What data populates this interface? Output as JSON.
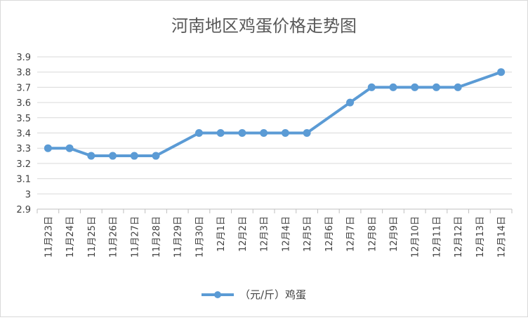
{
  "chart_data": {
    "type": "line",
    "title": "河南地区鸡蛋价格走势图",
    "xlabel": "",
    "ylabel": "",
    "ylim": [
      2.9,
      3.9
    ],
    "y_ticks": [
      "2.9",
      "3",
      "3.1",
      "3.2",
      "3.3",
      "3.4",
      "3.5",
      "3.6",
      "3.7",
      "3.8",
      "3.9"
    ],
    "grid": true,
    "legend_position": "bottom",
    "categories": [
      "11月23日",
      "11月24日",
      "11月25日",
      "11月26日",
      "11月27日",
      "11月28日",
      "11月29日",
      "11月30日",
      "12月1日",
      "12月2日",
      "12月3日",
      "12月4日",
      "12月5日",
      "12月6日",
      "12月7日",
      "12月8日",
      "12月9日",
      "12月10日",
      "12月11日",
      "12月12日",
      "12月13日",
      "12月14日"
    ],
    "series": [
      {
        "name": "（元/斤）鸡蛋",
        "color": "#5b9bd5",
        "values": [
          3.3,
          3.3,
          3.25,
          3.25,
          3.25,
          3.25,
          null,
          3.4,
          3.4,
          3.4,
          3.4,
          3.4,
          3.4,
          null,
          3.6,
          3.7,
          3.7,
          3.7,
          3.7,
          3.7,
          null,
          3.8
        ]
      }
    ]
  }
}
